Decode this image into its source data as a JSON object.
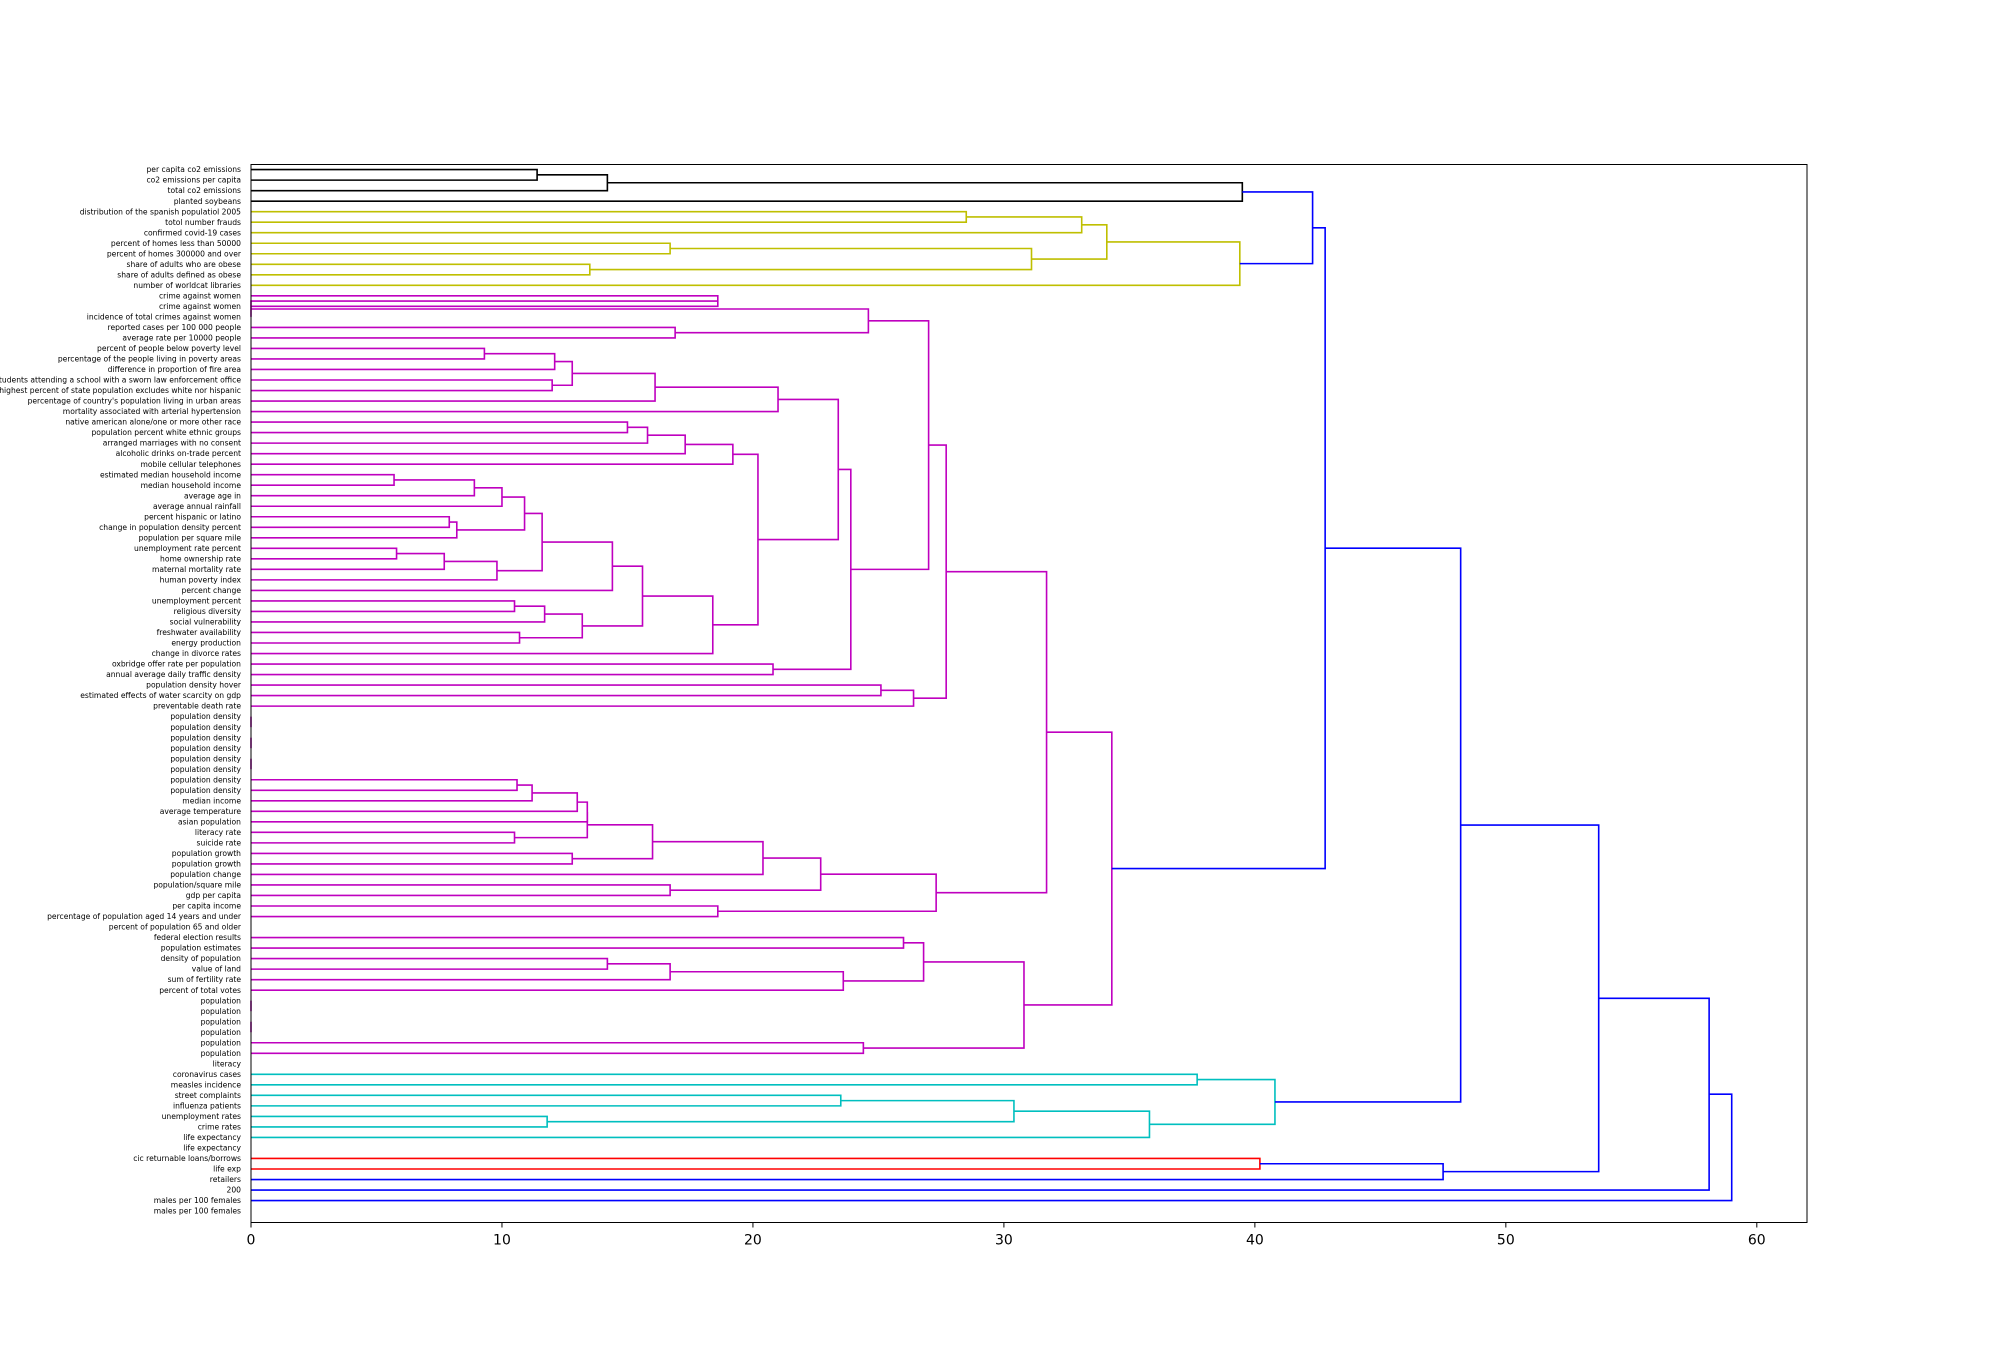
{
  "chart_data": {
    "type": "dendrogram",
    "orientation": "horizontal",
    "xlim": [
      0,
      62
    ],
    "x_ticks": [
      0,
      10,
      20,
      30,
      40,
      50,
      60
    ],
    "colors": {
      "black": "#000000",
      "yellow": "#bfbf00",
      "magenta": "#bf00bf",
      "cyan": "#00bfbf",
      "red": "#ff0000",
      "blue": "#0000ff"
    },
    "leaves": [
      "per capita co2 emissions",
      "co2 emissions per capita",
      "total co2 emissions",
      "planted soybeans",
      "distribution of the spanish populatiol 2005",
      "totol number frauds",
      "confirmed covid-19 cases",
      "percent of homes less than 50000",
      "percent of homes 300000 and over",
      "share of adults who are obese",
      "share of adults defined as obese",
      "number of worldcat libraries",
      "crime against women",
      "crime against women",
      "incidence of total crimes against women",
      "reported cases per 100 000 people",
      "average rate per 10000 people",
      "percent of people below poverty level",
      "percentage of the people living in poverty areas",
      "difference in proportion of fire area",
      "percent of public school students attending a school with a sworn law enforcement office",
      "state with highest percent of state population excludes white nor hispanic",
      "percentage of country's population living in urban areas",
      "mortality associated with arterial hypertension",
      "native american alone/one or more other race",
      "population percent white ethnic groups",
      "arranged marriages with no consent",
      "alcoholic drinks on-trade percent",
      "mobile cellular telephones",
      "estimated median household income",
      "median household income",
      "average age in",
      "average annual rainfall",
      "percent hispanic or latino",
      "change in population density percent",
      "population per square mile",
      "unemployment rate percent",
      "home ownership rate",
      "maternal mortality rate",
      "human poverty index",
      "percent change",
      "unemployment percent",
      "religious diversity",
      "social vulnerability",
      "freshwater availability",
      "energy production",
      "change in divorce rates",
      "oxbridge offer rate per population",
      "annual average daily traffic density",
      "population density hover",
      "estimated effects of water scarcity on gdp",
      "preventable death rate",
      "population density",
      "population density",
      "population density",
      "population density",
      "population density",
      "population density",
      "population density",
      "population density",
      "median income",
      "average temperature",
      "asian population",
      "literacy rate",
      "suicide rate",
      "population growth",
      "population growth",
      "population change",
      "population/square mile",
      "gdp per capita",
      "per capita income",
      "percentage of population aged 14 years and under",
      "percent of population 65 and older",
      "federal election results",
      "population estimates",
      "density of population",
      "value of land",
      "sum of fertility rate",
      "percent of total votes",
      "population",
      "population",
      "population",
      "population",
      "population",
      "population",
      "literacy",
      "coronavirus cases",
      "measles incidence",
      "street complaints",
      "influenza patients",
      "unemployment rates",
      "crime rates",
      "life expectancy",
      "life expectancy",
      "cic returnable loans/borrows",
      "life exp",
      "retailers",
      "200",
      "males per 100 females",
      "males per 100 females"
    ],
    "links": [
      {
        "a": 0,
        "b": 1,
        "h": 11.4,
        "c": "black"
      },
      {
        "a": "L0",
        "b": 2,
        "h": 14.2,
        "c": "black"
      },
      {
        "a": "L1",
        "b": 3,
        "h": 39.5,
        "c": "black"
      },
      {
        "a": 4,
        "b": 5,
        "h": 28.5,
        "c": "yellow"
      },
      {
        "a": "L3",
        "b": 6,
        "h": 33.1,
        "c": "yellow"
      },
      {
        "a": 7,
        "b": 8,
        "h": 16.7,
        "c": "yellow"
      },
      {
        "a": 9,
        "b": 10,
        "h": 13.5,
        "c": "yellow"
      },
      {
        "a": "L5",
        "b": "L6",
        "h": 31.1,
        "c": "yellow"
      },
      {
        "a": "L4",
        "b": "L7",
        "h": 34.1,
        "c": "yellow"
      },
      {
        "a": "L8",
        "b": 11,
        "h": 39.4,
        "c": "yellow"
      },
      {
        "a": "L2",
        "b": "L9",
        "h": 42.3,
        "c": "blue"
      },
      {
        "a": 12,
        "b": 13,
        "h": 18.6,
        "c": "magenta"
      },
      {
        "a": 15,
        "b": 16,
        "h": 16.9,
        "c": "magenta"
      },
      {
        "a": "L11",
        "b": 14,
        "h": 0,
        "c": "magenta"
      },
      {
        "a": "L13",
        "b": "L12",
        "h": 24.6,
        "c": "magenta"
      },
      {
        "a": 17,
        "b": 18,
        "h": 9.3,
        "c": "magenta"
      },
      {
        "a": "L15",
        "b": 19,
        "h": 12.1,
        "c": "magenta"
      },
      {
        "a": 20,
        "b": 21,
        "h": 12.0,
        "c": "magenta"
      },
      {
        "a": "L16",
        "b": "L17",
        "h": 12.8,
        "c": "magenta"
      },
      {
        "a": "L18",
        "b": 22,
        "h": 16.1,
        "c": "magenta"
      },
      {
        "a": "L19",
        "b": 23,
        "h": 21.0,
        "c": "magenta"
      },
      {
        "a": 24,
        "b": 25,
        "h": 15.0,
        "c": "magenta"
      },
      {
        "a": "L21",
        "b": 26,
        "h": 15.8,
        "c": "magenta"
      },
      {
        "a": "L22",
        "b": 27,
        "h": 17.3,
        "c": "magenta"
      },
      {
        "a": "L23",
        "b": 28,
        "h": 19.2,
        "c": "magenta"
      },
      {
        "a": 29,
        "b": 30,
        "h": 5.7,
        "c": "magenta"
      },
      {
        "a": "L25",
        "b": 31,
        "h": 8.9,
        "c": "magenta"
      },
      {
        "a": "L26",
        "b": 32,
        "h": 10.0,
        "c": "magenta"
      },
      {
        "a": 33,
        "b": 34,
        "h": 7.9,
        "c": "magenta"
      },
      {
        "a": "L28",
        "b": 35,
        "h": 8.2,
        "c": "magenta"
      },
      {
        "a": "L27",
        "b": "L29",
        "h": 10.9,
        "c": "magenta"
      },
      {
        "a": 36,
        "b": 37,
        "h": 5.8,
        "c": "magenta"
      },
      {
        "a": "L31",
        "b": 38,
        "h": 7.7,
        "c": "magenta"
      },
      {
        "a": "L32",
        "b": 39,
        "h": 9.8,
        "c": "magenta"
      },
      {
        "a": "L30",
        "b": "L33",
        "h": 11.6,
        "c": "magenta"
      },
      {
        "a": "L34",
        "b": 40,
        "h": 14.4,
        "c": "magenta"
      },
      {
        "a": 41,
        "b": 42,
        "h": 10.5,
        "c": "magenta"
      },
      {
        "a": "L36",
        "b": 43,
        "h": 11.7,
        "c": "magenta"
      },
      {
        "a": 44,
        "b": 45,
        "h": 10.7,
        "c": "magenta"
      },
      {
        "a": "L37",
        "b": "L38",
        "h": 13.2,
        "c": "magenta"
      },
      {
        "a": "L35",
        "b": "L39",
        "h": 15.6,
        "c": "magenta"
      },
      {
        "a": "L40",
        "b": 46,
        "h": 18.4,
        "c": "magenta"
      },
      {
        "a": "L24",
        "b": "L41",
        "h": 20.2,
        "c": "magenta"
      },
      {
        "a": "L20",
        "b": "L42",
        "h": 23.4,
        "c": "magenta"
      },
      {
        "a": 47,
        "b": 48,
        "h": 20.8,
        "c": "magenta"
      },
      {
        "a": "L43",
        "b": "L44",
        "h": 23.9,
        "c": "magenta"
      },
      {
        "a": "L14",
        "b": "L45",
        "h": 27.0,
        "c": "magenta"
      },
      {
        "a": 49,
        "b": 50,
        "h": 25.1,
        "c": "magenta"
      },
      {
        "a": "L47",
        "b": 51,
        "h": 26.4,
        "c": "magenta"
      },
      {
        "a": "L46",
        "b": "L48",
        "h": 27.7,
        "c": "magenta"
      },
      {
        "a": 52,
        "b": 53,
        "h": 0,
        "c": "magenta"
      },
      {
        "a": 54,
        "b": 55,
        "h": 0,
        "c": "magenta"
      },
      {
        "a": 56,
        "b": 57,
        "h": 0,
        "c": "magenta"
      },
      {
        "a": 58,
        "b": 59,
        "h": 10.6,
        "c": "magenta"
      },
      {
        "a": "L53",
        "b": 60,
        "h": 11.2,
        "c": "magenta"
      },
      {
        "a": "L54",
        "b": 61,
        "h": 13.0,
        "c": "magenta"
      },
      {
        "a": 63,
        "b": 64,
        "h": 10.5,
        "c": "magenta"
      },
      {
        "a": "L55",
        "b": 62,
        "h": 13.4,
        "c": "magenta"
      },
      {
        "a": 65,
        "b": 66,
        "h": 12.8,
        "c": "magenta"
      },
      {
        "a": "L57",
        "b": "L56",
        "h": 13.4,
        "c": "magenta"
      },
      {
        "a": "L59",
        "b": "L58",
        "h": 16.0,
        "c": "magenta"
      },
      {
        "a": "L60",
        "b": 67,
        "h": 20.4,
        "c": "magenta"
      },
      {
        "a": 68,
        "b": 69,
        "h": 16.7,
        "c": "magenta"
      },
      {
        "a": "L61",
        "b": "L62",
        "h": 22.7,
        "c": "magenta"
      },
      {
        "a": 70,
        "b": 71,
        "h": 18.6,
        "c": "magenta"
      },
      {
        "a": "L63",
        "b": "L64",
        "h": 27.3,
        "c": "magenta"
      },
      {
        "a": "L49",
        "b": "L65",
        "h": 31.7,
        "c": "magenta"
      },
      {
        "a": 73,
        "b": 74,
        "h": 26.0,
        "c": "magenta"
      },
      {
        "a": 75,
        "b": 76,
        "h": 14.2,
        "c": "magenta"
      },
      {
        "a": "L68",
        "b": 77,
        "h": 16.7,
        "c": "magenta"
      },
      {
        "a": "L69",
        "b": 78,
        "h": 23.6,
        "c": "magenta"
      },
      {
        "a": "L67",
        "b": "L70",
        "h": 26.8,
        "c": "magenta"
      },
      {
        "a": 79,
        "b": 80,
        "h": 0,
        "c": "magenta"
      },
      {
        "a": 81,
        "b": 82,
        "h": 0,
        "c": "magenta"
      },
      {
        "a": 83,
        "b": 84,
        "h": 24.4,
        "c": "magenta"
      },
      {
        "a": "L71",
        "b": "L74",
        "h": 30.8,
        "c": "magenta"
      },
      {
        "a": "L66",
        "b": "L75",
        "h": 34.3,
        "c": "magenta"
      },
      {
        "a": "L10",
        "b": "L76",
        "h": 42.8,
        "c": "blue"
      },
      {
        "a": 86,
        "b": 87,
        "h": 37.7,
        "c": "cyan"
      },
      {
        "a": 88,
        "b": 89,
        "h": 23.5,
        "c": "cyan"
      },
      {
        "a": 90,
        "b": 91,
        "h": 11.8,
        "c": "cyan"
      },
      {
        "a": "L79",
        "b": "L80",
        "h": 30.4,
        "c": "cyan"
      },
      {
        "a": "L81",
        "b": 92,
        "h": 35.8,
        "c": "cyan"
      },
      {
        "a": "L78",
        "b": "L82",
        "h": 40.8,
        "c": "cyan"
      },
      {
        "a": "L77",
        "b": "L83",
        "h": 48.2,
        "c": "blue"
      },
      {
        "a": 94,
        "b": 95,
        "h": 40.2,
        "c": "red"
      },
      {
        "a": "L85",
        "b": 96,
        "h": 47.5,
        "c": "blue"
      },
      {
        "a": "L84",
        "b": "L86",
        "h": 53.7,
        "c": "blue"
      },
      {
        "a": "L87",
        "b": 97,
        "h": 58.1,
        "c": "blue"
      },
      {
        "a": "L88",
        "b": 98,
        "h": 59.0,
        "c": "blue"
      }
    ]
  }
}
